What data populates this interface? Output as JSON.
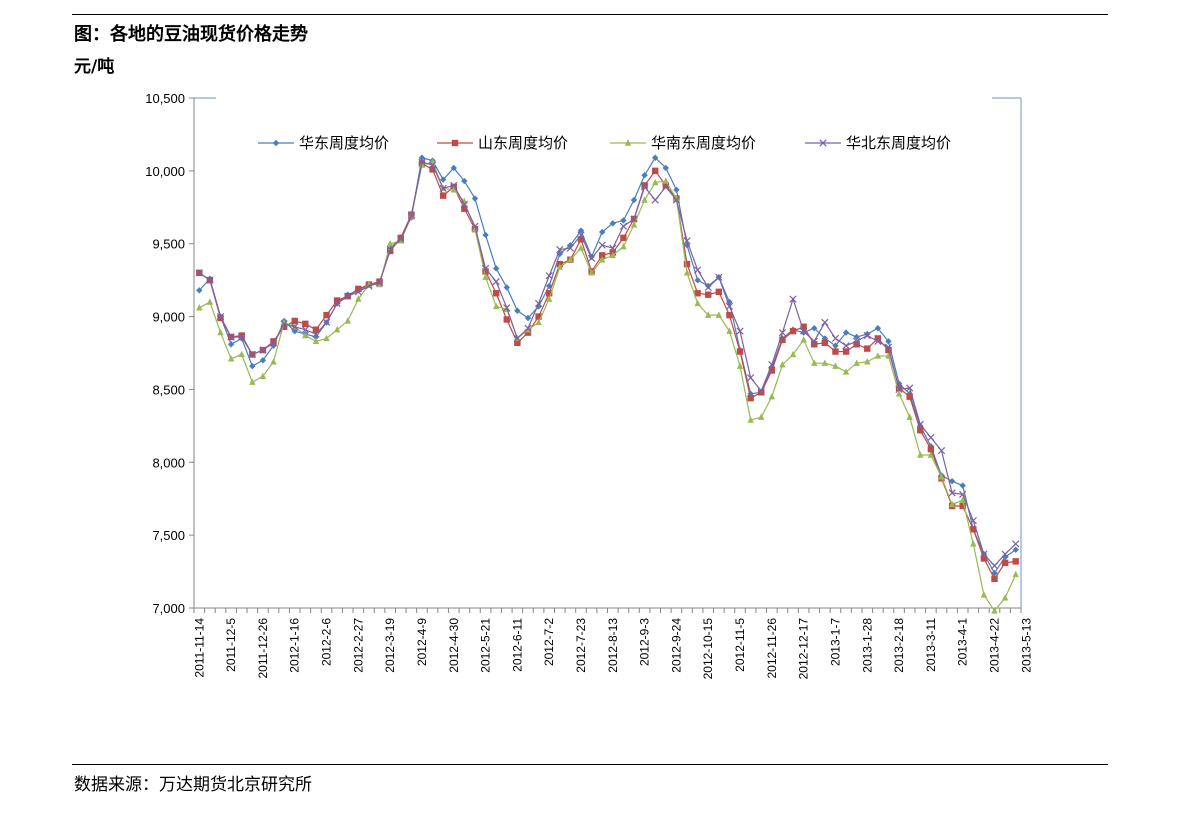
{
  "header": {
    "title": "图：各地的豆油现货价格走势",
    "unit": "元/吨"
  },
  "footer": {
    "source": "数据来源：万达期货北京研究所"
  },
  "chart_data": {
    "type": "line",
    "ylim": [
      7000,
      10500
    ],
    "yticks": [
      7000,
      7500,
      8000,
      8500,
      9000,
      9500,
      10000,
      10500
    ],
    "ytick_labels": [
      "7,000",
      "7,500",
      "8,000",
      "8,500",
      "9,000",
      "9,500",
      "10,000",
      "10,500"
    ],
    "xtick_labels": [
      "2011-11-14",
      "2011-12-5",
      "2011-12-26",
      "2012-1-16",
      "2012-2-6",
      "2012-2-27",
      "2012-3-19",
      "2012-4-9",
      "2012-4-30",
      "2012-5-21",
      "2012-6-11",
      "2012-7-2",
      "2012-7-23",
      "2012-8-13",
      "2012-9-3",
      "2012-9-24",
      "2012-10-15",
      "2012-11-5",
      "2012-11-26",
      "2012-12-17",
      "2013-1-7",
      "2013-1-28",
      "2013-2-18",
      "2013-3-11",
      "2013-4-1",
      "2013-4-22",
      "2013-5-13"
    ],
    "legend_position": "top",
    "grid": false,
    "series": [
      {
        "name": "华东周度均价",
        "color": "#4A7EBB",
        "marker": "diamond",
        "values": [
          9180,
          9260,
          9000,
          8810,
          8850,
          8660,
          8700,
          8800,
          8970,
          8900,
          8880,
          8860,
          8960,
          9090,
          9150,
          9180,
          9220,
          9230,
          9470,
          9540,
          9680,
          10090,
          10070,
          9940,
          10020,
          9930,
          9810,
          9560,
          9330,
          9200,
          9040,
          8990,
          9070,
          9210,
          9430,
          9490,
          9590,
          9410,
          9580,
          9640,
          9660,
          9800,
          9970,
          10090,
          10020,
          9870,
          9490,
          9250,
          9210,
          9270,
          9100,
          8770,
          8470,
          8480,
          8650,
          8850,
          8910,
          8890,
          8920,
          8850,
          8800,
          8890,
          8860,
          8880,
          8920,
          8830,
          8540,
          8470,
          8250,
          8110,
          7910,
          7870,
          7840,
          7540,
          7370,
          7240,
          7350,
          7400
        ]
      },
      {
        "name": "山东周度均价",
        "color": "#BE4B48",
        "marker": "square",
        "values": [
          9300,
          9250,
          8990,
          8860,
          8870,
          8740,
          8770,
          8830,
          8930,
          8970,
          8950,
          8910,
          9010,
          9110,
          9140,
          9190,
          9220,
          9240,
          9450,
          9540,
          9700,
          10050,
          10010,
          9830,
          9890,
          9740,
          9600,
          9310,
          9160,
          8980,
          8820,
          8890,
          9000,
          9160,
          9360,
          9390,
          9530,
          9310,
          9420,
          9440,
          9540,
          9670,
          9900,
          10000,
          9900,
          9810,
          9360,
          9160,
          9150,
          9170,
          9010,
          8760,
          8440,
          8480,
          8630,
          8840,
          8900,
          8930,
          8810,
          8820,
          8760,
          8760,
          8810,
          8780,
          8850,
          8770,
          8510,
          8450,
          8220,
          8090,
          7890,
          7700,
          7700,
          7540,
          7340,
          7200,
          7310,
          7320
        ]
      },
      {
        "name": "华南东周度均价",
        "color": "#98B954",
        "marker": "triangle",
        "values": [
          9060,
          9100,
          8890,
          8710,
          8740,
          8550,
          8590,
          8690,
          8960,
          8930,
          8870,
          8830,
          8850,
          8910,
          8970,
          9120,
          9220,
          9220,
          9500,
          9520,
          9690,
          10040,
          10060,
          9880,
          9870,
          9790,
          9600,
          9270,
          9070,
          9050,
          8850,
          8910,
          8960,
          9120,
          9340,
          9390,
          9470,
          9300,
          9390,
          9420,
          9480,
          9630,
          9800,
          9920,
          9930,
          9810,
          9300,
          9090,
          9010,
          9010,
          8900,
          8660,
          8290,
          8310,
          8450,
          8670,
          8740,
          8840,
          8680,
          8680,
          8660,
          8620,
          8680,
          8690,
          8730,
          8730,
          8470,
          8310,
          8050,
          8050,
          7900,
          7710,
          7740,
          7440,
          7090,
          6980,
          7070,
          7230
        ]
      },
      {
        "name": "华北东周度均价",
        "color": "#7D60A0",
        "marker": "x",
        "values": [
          9300,
          9250,
          9000,
          8860,
          8860,
          8740,
          8770,
          8820,
          8950,
          8930,
          8910,
          8880,
          8960,
          9090,
          9140,
          9170,
          9210,
          9230,
          9460,
          9530,
          9690,
          10060,
          10040,
          9880,
          9900,
          9770,
          9620,
          9330,
          9240,
          9060,
          8850,
          8920,
          9090,
          9280,
          9460,
          9470,
          9560,
          9400,
          9490,
          9470,
          9620,
          9670,
          9890,
          9800,
          9890,
          9800,
          9520,
          9320,
          9200,
          9270,
          9070,
          8900,
          8580,
          8490,
          8670,
          8890,
          9120,
          8900,
          8830,
          8960,
          8850,
          8800,
          8830,
          8870,
          8830,
          8790,
          8500,
          8510,
          8260,
          8170,
          8080,
          7790,
          7780,
          7600,
          7370,
          7290,
          7370,
          7440
        ]
      }
    ]
  }
}
